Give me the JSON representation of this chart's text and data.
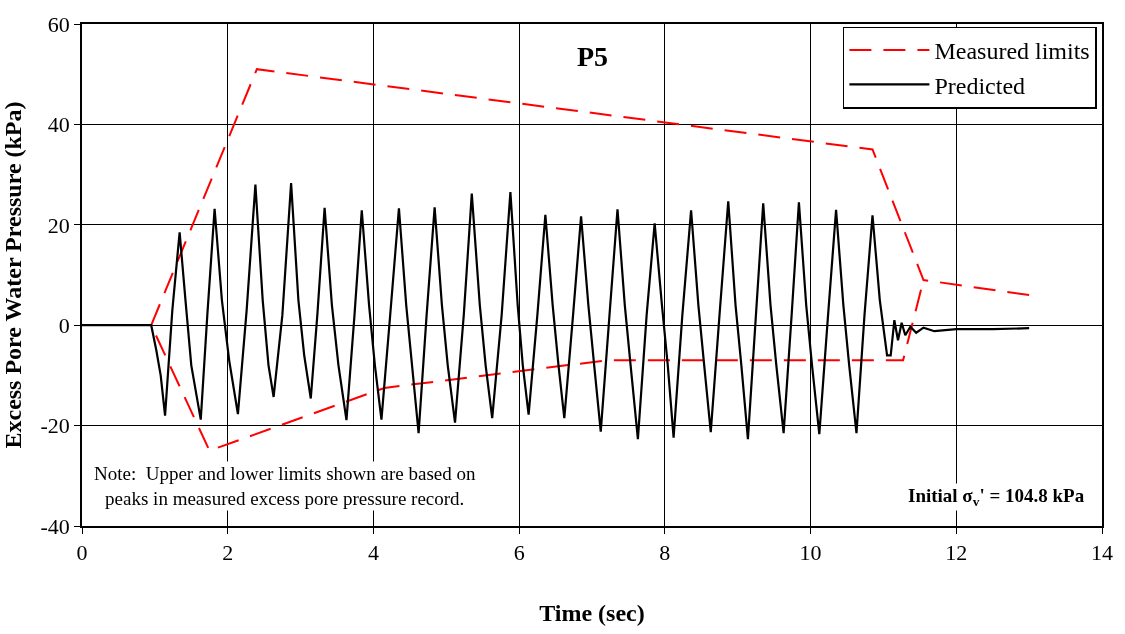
{
  "chart_data": {
    "type": "line",
    "xlabel": "Time (sec)",
    "ylabel": "Excess Pore Water Pressure (kPa)",
    "xlim": [
      0,
      14
    ],
    "xticks": [
      0,
      2,
      4,
      6,
      8,
      10,
      12,
      14
    ],
    "ylim": [
      -40,
      60
    ],
    "yticks": [
      -40,
      -20,
      0,
      20,
      40,
      60
    ],
    "grid": true,
    "legend": "top right",
    "annotations": [
      {
        "text": "P5"
      },
      {
        "text": "Note:  Upper and lower limits shown are based on\npeaks in measured excess pore pressure record."
      },
      {
        "text": "Initial σ$_{v}$' = 104.8 kPa"
      }
    ],
    "series": [
      {
        "name": "Measured limits",
        "color": "#ff0000",
        "line_style": "dashed",
        "x": [
          13,
          11.55,
          10.85,
          2.4,
          0.95,
          1.75,
          4.15,
          7.2,
          11.27,
          11.55
        ],
        "values": [
          6,
          9,
          35,
          51,
          0,
          -25,
          -12.5,
          -7,
          -7,
          9
        ]
      },
      {
        "name": "Predicted",
        "color": "#000000",
        "line_style": "solid",
        "x": [
          0,
          0.95,
          1.02,
          1.08,
          1.14,
          1.24,
          1.34,
          1.42,
          1.5,
          1.63,
          1.72,
          1.82,
          1.92,
          2.02,
          2.14,
          2.26,
          2.38,
          2.48,
          2.56,
          2.63,
          2.75,
          2.87,
          2.97,
          3.05,
          3.14,
          3.23,
          3.33,
          3.43,
          3.52,
          3.63,
          3.74,
          3.84,
          3.94,
          4.02,
          4.11,
          4.23,
          4.35,
          4.45,
          4.53,
          4.62,
          4.73,
          4.84,
          4.94,
          5.02,
          5.12,
          5.24,
          5.35,
          5.46,
          5.54,
          5.63,
          5.76,
          5.88,
          5.98,
          6.05,
          6.13,
          6.25,
          6.36,
          6.46,
          6.54,
          6.62,
          6.74,
          6.85,
          6.95,
          7.03,
          7.12,
          7.24,
          7.35,
          7.45,
          7.53,
          7.63,
          7.75,
          7.86,
          7.96,
          8.04,
          8.12,
          8.24,
          8.36,
          8.46,
          8.54,
          8.63,
          8.75,
          8.87,
          8.97,
          9.05,
          9.14,
          9.25,
          9.35,
          9.45,
          9.53,
          9.63,
          9.74,
          9.84,
          9.94,
          10.02,
          10.12,
          10.24,
          10.35,
          10.45,
          10.53,
          10.63,
          10.74,
          10.85,
          10.95,
          11.05,
          11.1,
          11.15,
          11.2,
          11.25,
          11.3,
          11.37,
          11.45,
          11.55,
          11.7,
          12,
          12.5,
          13
        ],
        "values": [
          0,
          0,
          -5,
          -10,
          -18,
          3,
          18.5,
          5,
          -8,
          -18.8,
          2,
          23.2,
          5,
          -7,
          -17.7,
          3,
          28,
          5,
          -8,
          -14.3,
          2,
          28.3,
          5,
          -6,
          -14.6,
          2,
          23.4,
          4,
          -8,
          -18.9,
          2,
          22.9,
          4,
          -8,
          -18.8,
          2,
          23.3,
          4,
          -8,
          -21.5,
          2,
          23.5,
          4,
          -8,
          -19.4,
          2,
          26.2,
          4,
          -8,
          -18.5,
          2,
          26.5,
          4,
          -8,
          -17.8,
          2,
          22,
          4,
          -8,
          -18.5,
          2,
          21.7,
          4,
          -8,
          -21.2,
          2,
          23.1,
          4,
          -8,
          -22.7,
          2,
          20.3,
          4,
          -8,
          -22.4,
          2,
          22.9,
          4,
          -8,
          -21.3,
          2,
          24.7,
          4,
          -8,
          -22.7,
          2,
          24.3,
          4,
          -8,
          -21.5,
          2,
          24.5,
          4,
          -8,
          -21.7,
          2,
          23,
          4,
          -8,
          -21.5,
          2,
          21.9,
          5,
          -6,
          -6,
          1,
          -3,
          0.5,
          -2,
          -0.3,
          -1.5,
          -0.5,
          -1.2,
          -0.8,
          -0.8,
          -0.6
        ]
      }
    ]
  }
}
